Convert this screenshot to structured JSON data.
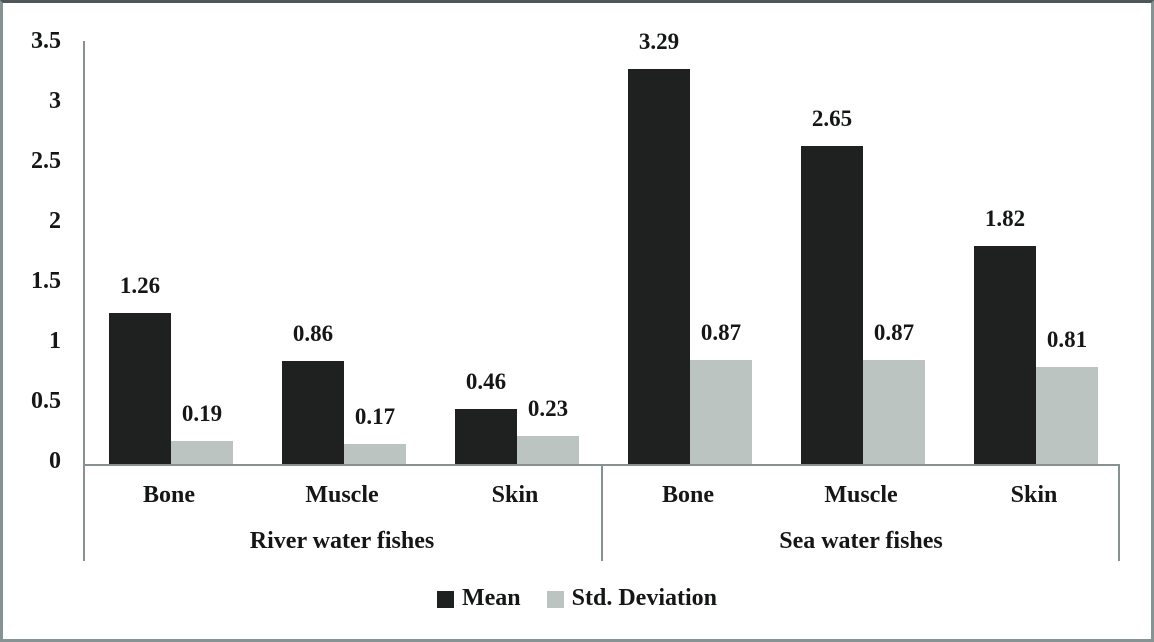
{
  "figure": {
    "background": "#ffffff",
    "border_color": "#879292"
  },
  "chart_data": {
    "type": "bar",
    "title": "",
    "xlabel": "",
    "ylabel": "",
    "grid": false,
    "legend_position": "bottom",
    "axis_color": "#879191",
    "text_color": "#141715",
    "y_axis": {
      "min": 0,
      "max": 3.5,
      "ticks": [
        {
          "value": 0,
          "label": "0"
        },
        {
          "value": 0.5,
          "label": "0.5"
        },
        {
          "value": 1,
          "label": "1"
        },
        {
          "value": 1.5,
          "label": "1.5"
        },
        {
          "value": 2,
          "label": "2"
        },
        {
          "value": 2.5,
          "label": "2.5"
        },
        {
          "value": 3,
          "label": "3"
        },
        {
          "value": 3.5,
          "label": "3.5"
        }
      ]
    },
    "groups": [
      {
        "label": "River water fishes",
        "categories": [
          "Bone",
          "Muscle",
          "Skin"
        ],
        "series": [
          {
            "name": "Mean",
            "values": [
              1.26,
              0.86,
              0.46
            ]
          },
          {
            "name": "Std. Deviation",
            "values": [
              0.19,
              0.17,
              0.23
            ]
          }
        ]
      },
      {
        "label": "Sea water fishes",
        "categories": [
          "Bone",
          "Muscle",
          "Skin"
        ],
        "series": [
          {
            "name": "Mean",
            "values": [
              3.29,
              2.65,
              1.82
            ]
          },
          {
            "name": "Std. Deviation",
            "values": [
              0.87,
              0.87,
              0.81
            ]
          }
        ]
      }
    ],
    "legend": [
      {
        "label": "Mean",
        "color": "#1e2120"
      },
      {
        "label": "Std. Deviation",
        "color": "#bcc4c1"
      }
    ]
  }
}
